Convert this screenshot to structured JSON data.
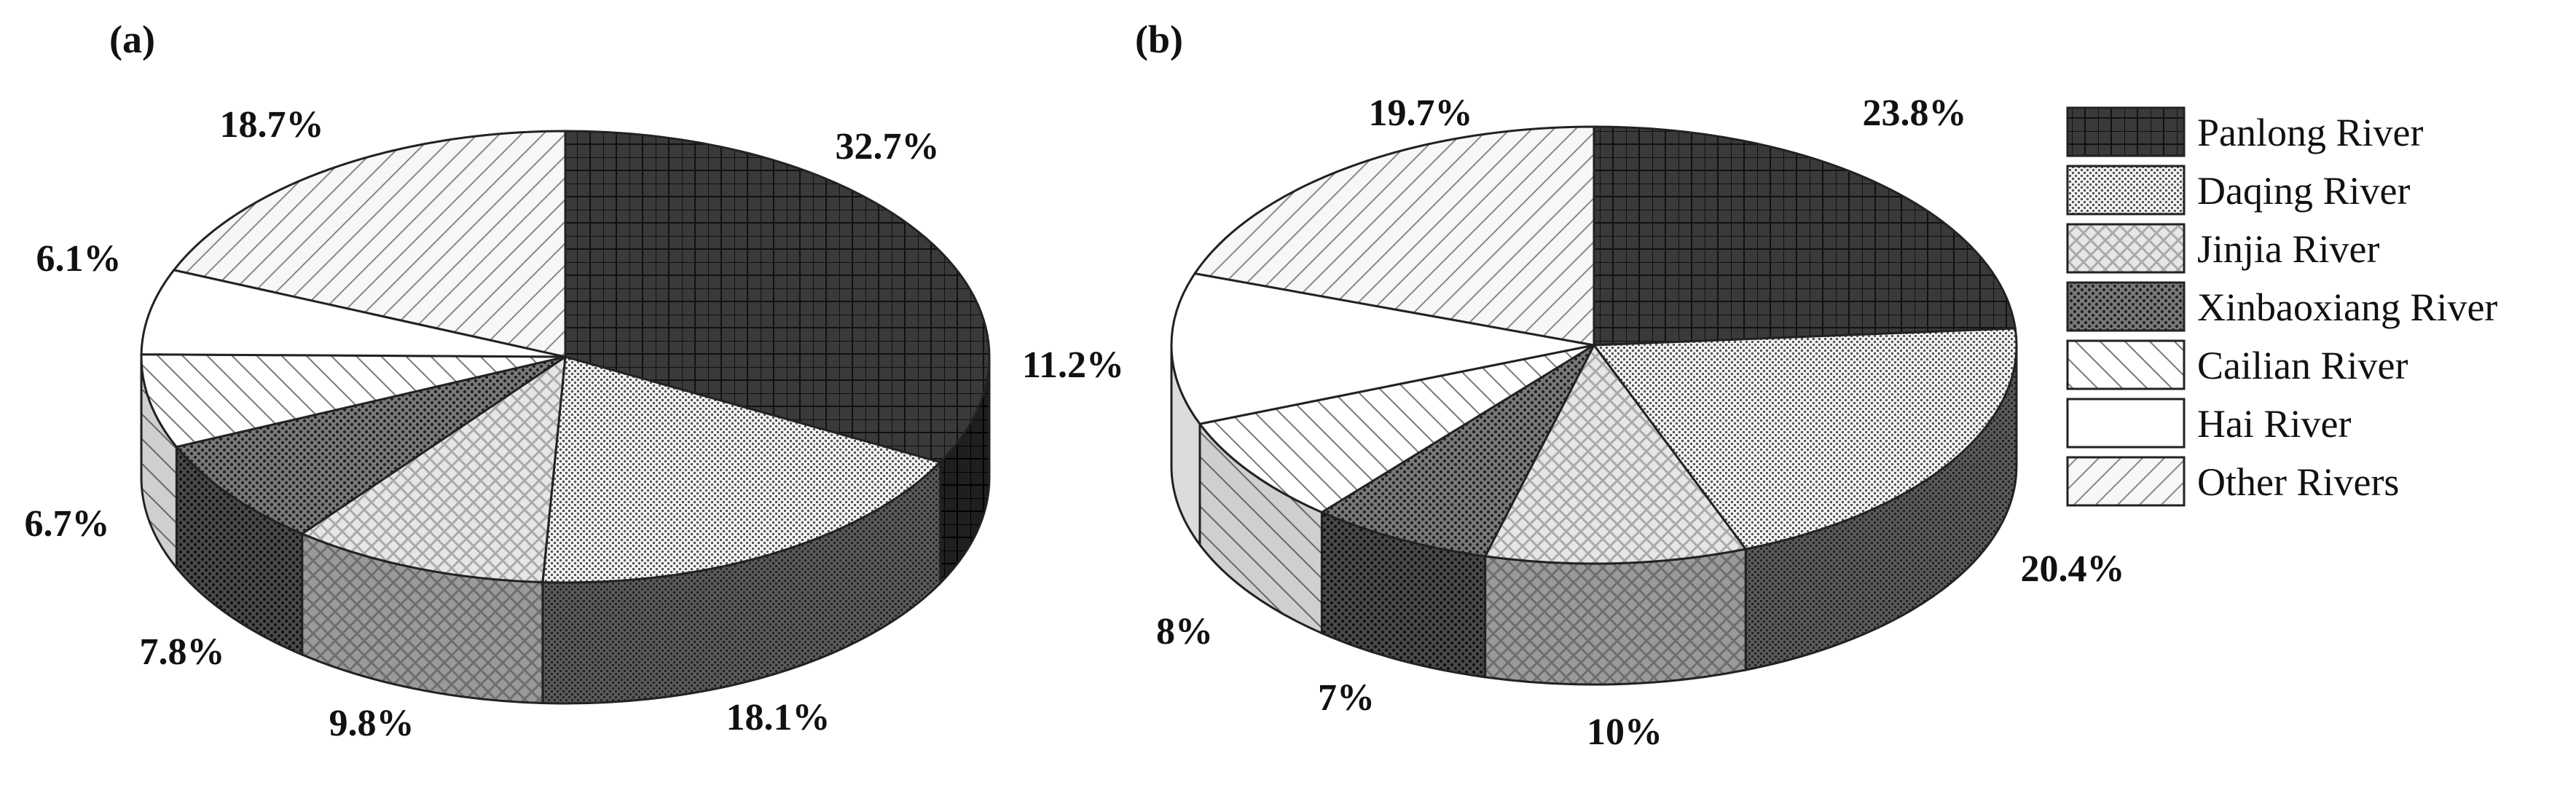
{
  "chart_data": [
    {
      "type": "pie",
      "panel": "(a)",
      "style": "3d",
      "categories": [
        "Panlong River",
        "Daqing River",
        "Jinjia River",
        "Xinbaoxiang River",
        "Cailian River",
        "Hai River",
        "Other Rivers"
      ],
      "values": [
        32.7,
        18.1,
        9.8,
        7.8,
        6.7,
        6.1,
        18.7
      ],
      "labels": [
        "32.7%",
        "18.1%",
        "9.8%",
        "7.8%",
        "6.7%",
        "6.1%",
        "18.7%"
      ]
    },
    {
      "type": "pie",
      "panel": "(b)",
      "style": "3d",
      "categories": [
        "Panlong River",
        "Daqing River",
        "Jinjia River",
        "Xinbaoxiang River",
        "Cailian River",
        "Hai River",
        "Other Rivers"
      ],
      "values": [
        23.8,
        20.4,
        10,
        7,
        8,
        11.2,
        19.7
      ],
      "labels": [
        "23.8%",
        "20.4%",
        "10%",
        "7%",
        "8%",
        "11.2%",
        "19.7%"
      ]
    }
  ],
  "legend": {
    "placement": "right",
    "items": [
      "Panlong River",
      "Daqing River",
      "Jinjia River",
      "Xinbaoxiang River",
      "Cailian River",
      "Hai River",
      "Other Rivers"
    ]
  },
  "fills": [
    "dark-grid",
    "fine-dots",
    "light-diagonal-hatch",
    "dark-dots",
    "backslash-hatch",
    "blank",
    "forward-slash-hatch"
  ]
}
